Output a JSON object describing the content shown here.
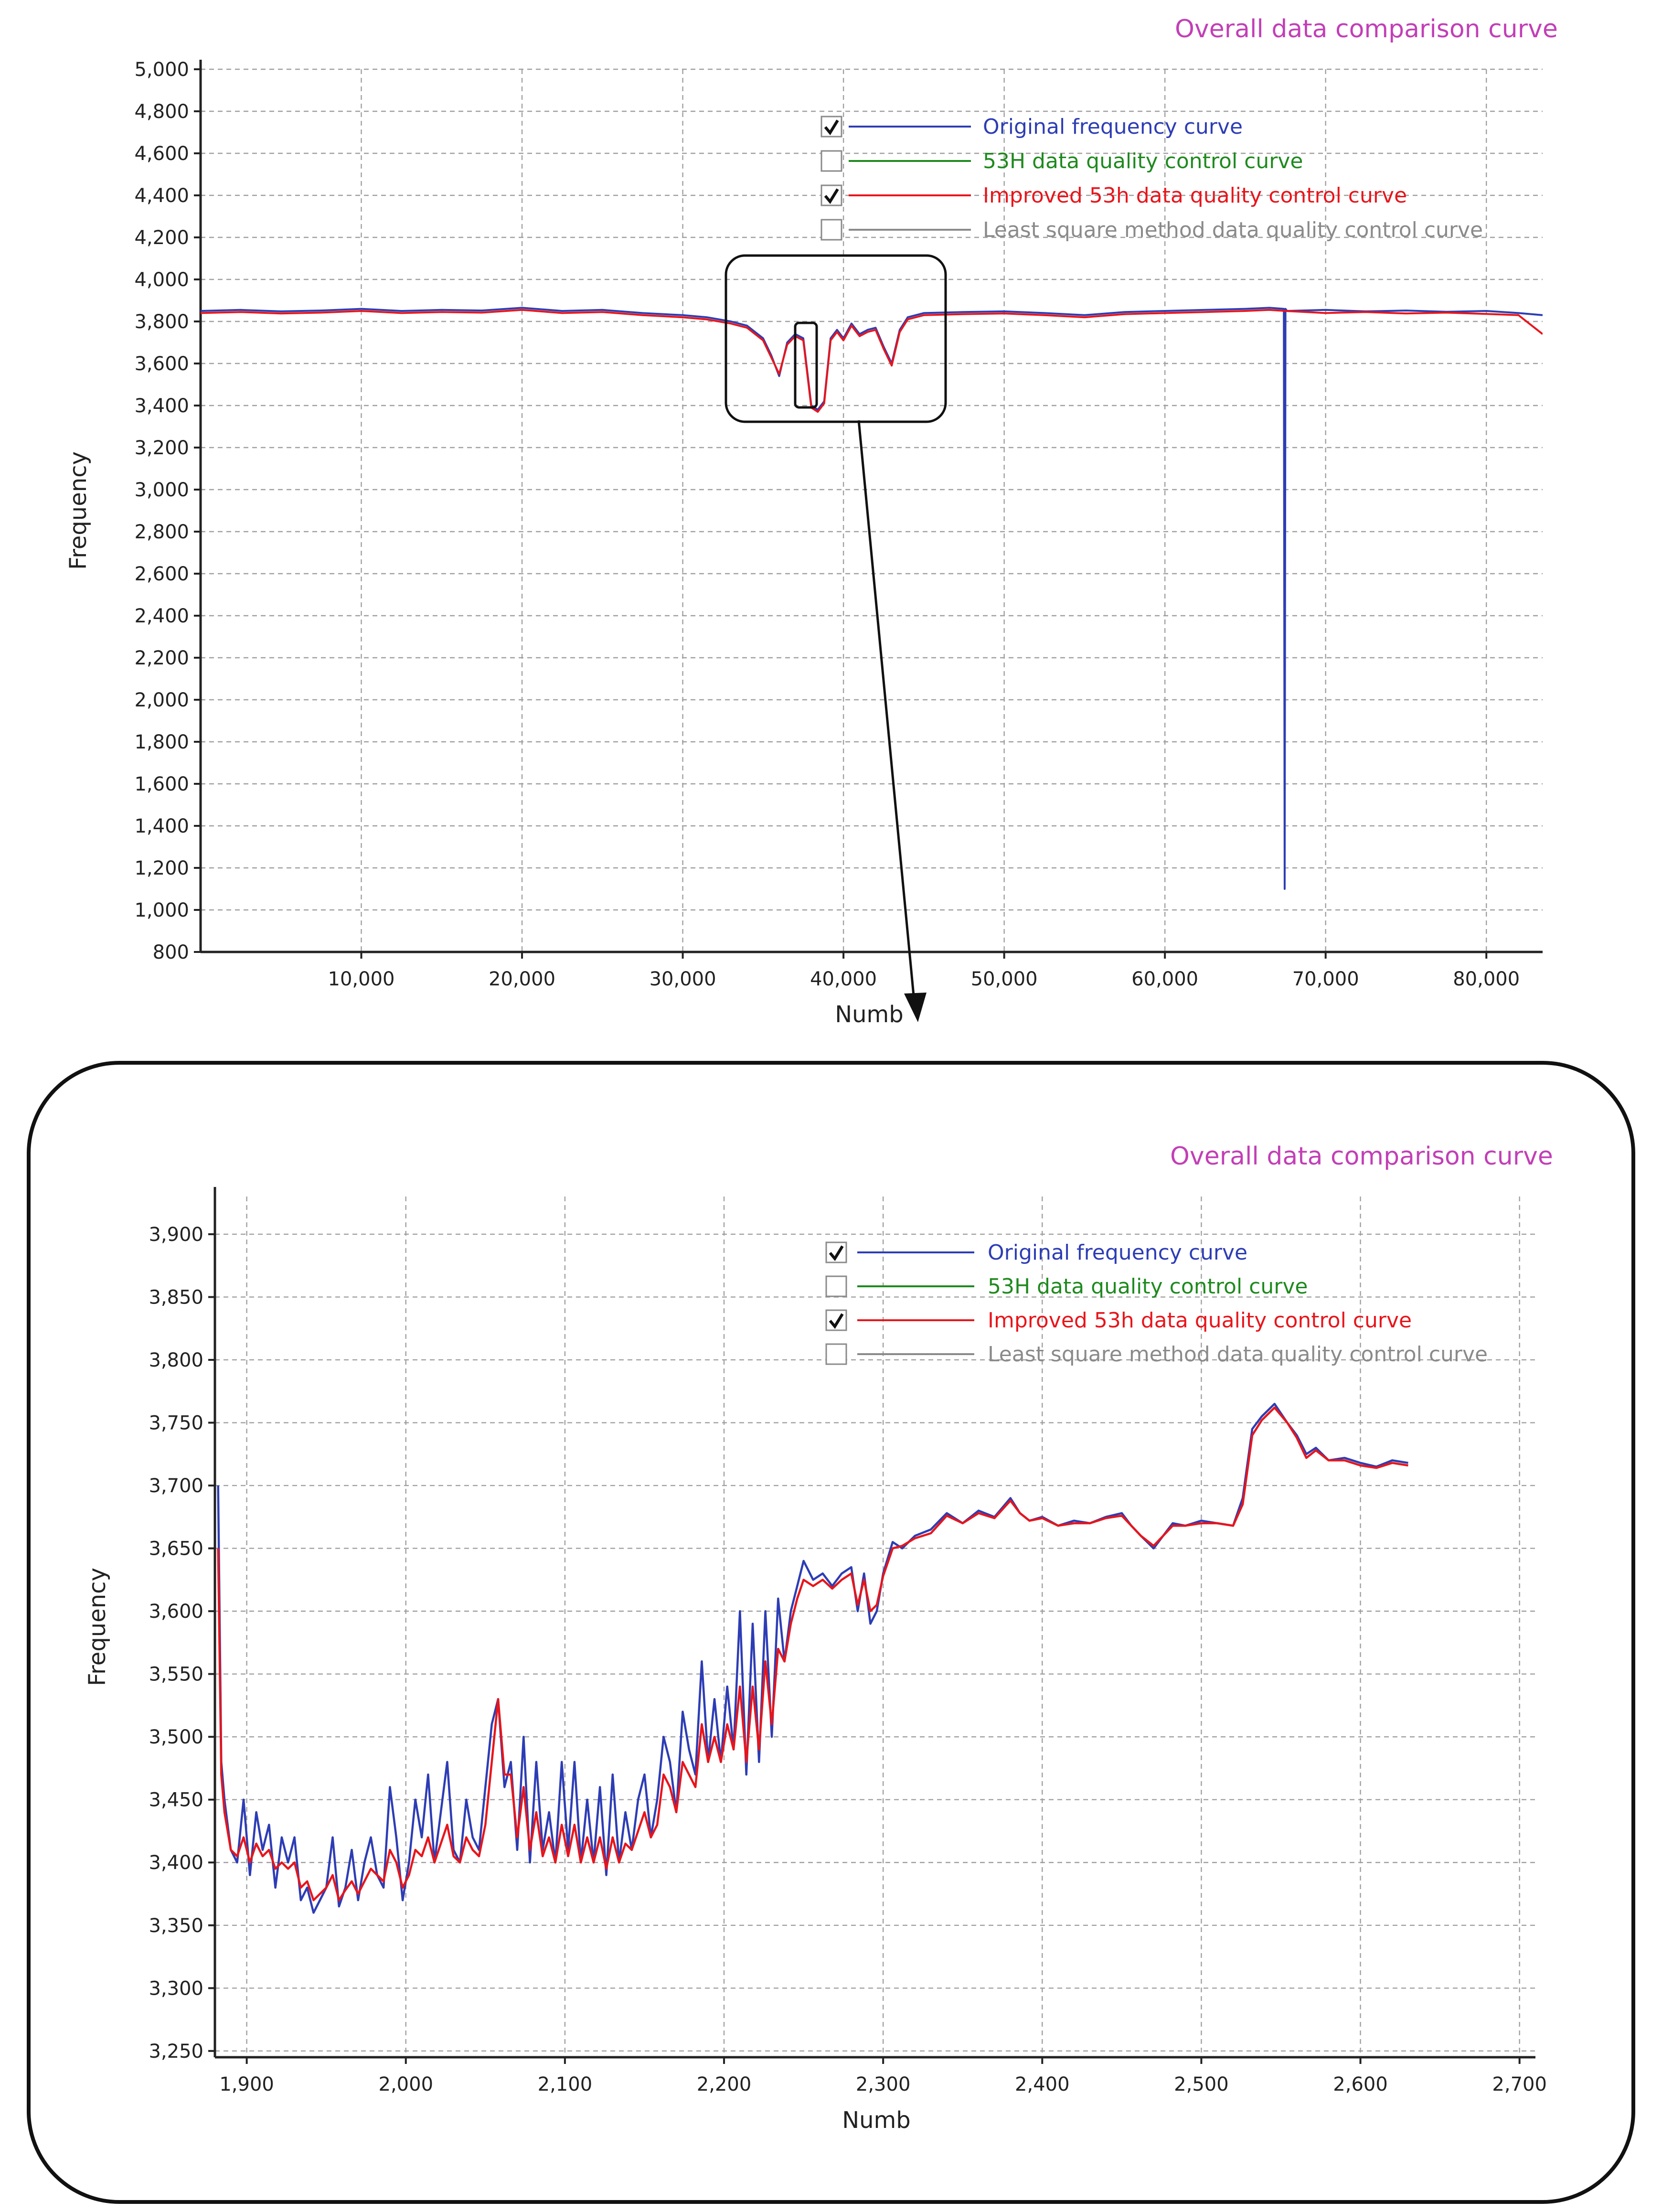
{
  "chart_data": [
    {
      "type": "line",
      "title": "Overall data comparison curve",
      "xlabel": "Numb",
      "ylabel": "Frequency",
      "xlim": [
        0,
        83500
      ],
      "ylim": [
        800,
        5000
      ],
      "xticks": [
        10000,
        20000,
        30000,
        40000,
        50000,
        60000,
        70000,
        80000
      ],
      "xtick_labels": [
        "10,000",
        "20,000",
        "30,000",
        "40,000",
        "50,000",
        "60,000",
        "70,000",
        "80,000"
      ],
      "yticks": [
        800,
        1000,
        1200,
        1400,
        1600,
        1800,
        2000,
        2200,
        2400,
        2600,
        2800,
        3000,
        3200,
        3400,
        3600,
        3800,
        4000,
        4200,
        4400,
        4600,
        4800,
        5000
      ],
      "ytick_labels": [
        "800",
        "1,000",
        "1,200",
        "1,400",
        "1,600",
        "1,800",
        "2,000",
        "2,200",
        "2,400",
        "2,600",
        "2,800",
        "3,000",
        "3,200",
        "3,400",
        "3,600",
        "3,800",
        "4,000",
        "4,200",
        "4,400",
        "4,600",
        "4,800",
        "5,000"
      ],
      "grid": true,
      "legend": [
        {
          "label": "Original frequency curve",
          "color": "#2d3db5",
          "checked": true
        },
        {
          "label": "53H data quality control curve",
          "color": "#1e8a1e",
          "checked": false
        },
        {
          "label": "Improved 53h data quality control curve",
          "color": "#e8151b",
          "checked": true
        },
        {
          "label": "Least square method data quality control curve",
          "color": "#8a8a8a",
          "checked": false
        }
      ],
      "series": [
        {
          "name": "Original frequency curve",
          "color": "#2d3db5",
          "x": [
            0,
            2500,
            5000,
            7500,
            10000,
            12500,
            15000,
            17500,
            20000,
            22500,
            25000,
            27500,
            30000,
            31500,
            33000,
            34000,
            35000,
            35500,
            36000,
            36500,
            37000,
            37500,
            38000,
            38400,
            38800,
            39200,
            39600,
            40000,
            40500,
            41000,
            41500,
            42000,
            42500,
            43000,
            43500,
            44000,
            45000,
            47500,
            50000,
            52500,
            55000,
            57500,
            60000,
            62500,
            65000,
            66500,
            67400,
            67450,
            67500,
            67600,
            70000,
            72500,
            75000,
            77500,
            80000,
            82000,
            83500
          ],
          "y": [
            3850,
            3855,
            3848,
            3852,
            3860,
            3850,
            3855,
            3852,
            3865,
            3850,
            3855,
            3840,
            3830,
            3820,
            3800,
            3780,
            3720,
            3640,
            3540,
            3700,
            3740,
            3720,
            3400,
            3380,
            3420,
            3720,
            3760,
            3720,
            3790,
            3740,
            3760,
            3770,
            3680,
            3600,
            3760,
            3820,
            3840,
            3845,
            3848,
            3840,
            3830,
            3845,
            3850,
            3855,
            3860,
            3865,
            3860,
            1100,
            3860,
            3850,
            3855,
            3848,
            3852,
            3846,
            3850,
            3840,
            3830
          ]
        },
        {
          "name": "Improved 53h data quality control curve",
          "color": "#e8151b",
          "x": [
            0,
            2500,
            5000,
            7500,
            10000,
            12500,
            15000,
            17500,
            20000,
            22500,
            25000,
            27500,
            30000,
            31500,
            33000,
            34000,
            35000,
            35500,
            36000,
            36500,
            37000,
            37500,
            38000,
            38400,
            38800,
            39200,
            39600,
            40000,
            40500,
            41000,
            41500,
            42000,
            42500,
            43000,
            43500,
            44000,
            45000,
            47500,
            50000,
            52500,
            55000,
            57500,
            60000,
            62500,
            65000,
            66500,
            67500,
            70000,
            72500,
            75000,
            77500,
            80000,
            82000,
            83500
          ],
          "y": [
            3840,
            3845,
            3838,
            3842,
            3850,
            3840,
            3845,
            3842,
            3855,
            3840,
            3845,
            3830,
            3820,
            3810,
            3790,
            3770,
            3710,
            3630,
            3550,
            3690,
            3730,
            3710,
            3390,
            3370,
            3410,
            3710,
            3750,
            3710,
            3780,
            3730,
            3750,
            3760,
            3670,
            3590,
            3750,
            3810,
            3830,
            3835,
            3838,
            3830,
            3820,
            3835,
            3840,
            3845,
            3850,
            3855,
            3850,
            3840,
            3845,
            3838,
            3842,
            3836,
            3830,
            3740
          ]
        }
      ]
    },
    {
      "type": "line",
      "title": "Overall data comparison curve",
      "xlabel": "Numb",
      "ylabel": "Frequency",
      "xlim": [
        1880,
        2710
      ],
      "ylim": [
        3245,
        3930
      ],
      "xticks": [
        1900,
        2000,
        2100,
        2200,
        2300,
        2400,
        2500,
        2600,
        2700
      ],
      "xtick_labels": [
        "1,900",
        "2,000",
        "2,100",
        "2,200",
        "2,300",
        "2,400",
        "2,500",
        "2,600",
        "2,700"
      ],
      "yticks": [
        3250,
        3300,
        3350,
        3400,
        3450,
        3500,
        3550,
        3600,
        3650,
        3700,
        3750,
        3800,
        3850,
        3900
      ],
      "ytick_labels": [
        "3,250",
        "3,300",
        "3,350",
        "3,400",
        "3,450",
        "3,500",
        "3,550",
        "3,600",
        "3,650",
        "3,700",
        "3,750",
        "3,800",
        "3,850",
        "3,900"
      ],
      "grid": true,
      "legend": [
        {
          "label": "Original frequency curve",
          "color": "#2d3db5",
          "checked": true
        },
        {
          "label": "53H data quality control curve",
          "color": "#1e8a1e",
          "checked": false
        },
        {
          "label": "Improved 53h data quality control curve",
          "color": "#e8151b",
          "checked": true
        },
        {
          "label": "Least square method data quality control curve",
          "color": "#8a8a8a",
          "checked": false
        }
      ],
      "series": [
        {
          "name": "Original frequency curve",
          "color": "#2d3db5",
          "x": [
            1882,
            1884,
            1886,
            1890,
            1894,
            1898,
            1902,
            1906,
            1910,
            1914,
            1918,
            1922,
            1926,
            1930,
            1934,
            1938,
            1942,
            1946,
            1950,
            1954,
            1958,
            1962,
            1966,
            1970,
            1974,
            1978,
            1982,
            1986,
            1990,
            1994,
            1998,
            2002,
            2006,
            2010,
            2014,
            2018,
            2022,
            2026,
            2030,
            2034,
            2038,
            2042,
            2046,
            2050,
            2054,
            2058,
            2062,
            2066,
            2070,
            2074,
            2078,
            2082,
            2086,
            2090,
            2094,
            2098,
            2102,
            2106,
            2110,
            2114,
            2118,
            2122,
            2126,
            2130,
            2134,
            2138,
            2142,
            2146,
            2150,
            2154,
            2158,
            2162,
            2166,
            2170,
            2174,
            2178,
            2182,
            2186,
            2190,
            2194,
            2198,
            2202,
            2206,
            2210,
            2214,
            2218,
            2222,
            2226,
            2230,
            2234,
            2238,
            2242,
            2246,
            2250,
            2256,
            2262,
            2268,
            2274,
            2280,
            2284,
            2288,
            2292,
            2296,
            2300,
            2306,
            2312,
            2320,
            2330,
            2340,
            2350,
            2360,
            2370,
            2380,
            2386,
            2392,
            2400,
            2410,
            2420,
            2430,
            2440,
            2450,
            2456,
            2462,
            2470,
            2476,
            2482,
            2490,
            2500,
            2510,
            2520,
            2526,
            2532,
            2538,
            2546,
            2554,
            2560,
            2566,
            2572,
            2580,
            2590,
            2600,
            2610,
            2620,
            2630
          ],
          "y": [
            3700,
            3480,
            3450,
            3410,
            3400,
            3450,
            3390,
            3440,
            3410,
            3430,
            3380,
            3420,
            3400,
            3420,
            3370,
            3380,
            3360,
            3370,
            3380,
            3420,
            3365,
            3380,
            3410,
            3370,
            3400,
            3420,
            3390,
            3380,
            3460,
            3420,
            3370,
            3400,
            3450,
            3420,
            3470,
            3400,
            3440,
            3480,
            3410,
            3400,
            3450,
            3420,
            3410,
            3460,
            3510,
            3530,
            3460,
            3480,
            3410,
            3500,
            3400,
            3480,
            3410,
            3440,
            3400,
            3480,
            3410,
            3480,
            3400,
            3450,
            3400,
            3460,
            3390,
            3470,
            3400,
            3440,
            3410,
            3450,
            3470,
            3420,
            3450,
            3500,
            3480,
            3440,
            3520,
            3490,
            3470,
            3560,
            3480,
            3530,
            3480,
            3540,
            3490,
            3600,
            3470,
            3590,
            3480,
            3600,
            3500,
            3610,
            3560,
            3600,
            3620,
            3640,
            3625,
            3630,
            3620,
            3630,
            3635,
            3600,
            3630,
            3590,
            3600,
            3630,
            3655,
            3650,
            3660,
            3665,
            3678,
            3670,
            3680,
            3675,
            3690,
            3678,
            3672,
            3675,
            3668,
            3672,
            3670,
            3675,
            3678,
            3668,
            3660,
            3650,
            3660,
            3670,
            3668,
            3672,
            3670,
            3668,
            3690,
            3745,
            3755,
            3765,
            3750,
            3740,
            3725,
            3730,
            3720,
            3722,
            3718,
            3715,
            3720,
            3718
          ]
        },
        {
          "name": "Improved 53h data quality control curve",
          "color": "#e8151b",
          "x": [
            1882,
            1884,
            1886,
            1890,
            1894,
            1898,
            1902,
            1906,
            1910,
            1914,
            1918,
            1922,
            1926,
            1930,
            1934,
            1938,
            1942,
            1946,
            1950,
            1954,
            1958,
            1962,
            1966,
            1970,
            1974,
            1978,
            1982,
            1986,
            1990,
            1994,
            1998,
            2002,
            2006,
            2010,
            2014,
            2018,
            2022,
            2026,
            2030,
            2034,
            2038,
            2042,
            2046,
            2050,
            2054,
            2058,
            2062,
            2066,
            2070,
            2074,
            2078,
            2082,
            2086,
            2090,
            2094,
            2098,
            2102,
            2106,
            2110,
            2114,
            2118,
            2122,
            2126,
            2130,
            2134,
            2138,
            2142,
            2146,
            2150,
            2154,
            2158,
            2162,
            2166,
            2170,
            2174,
            2178,
            2182,
            2186,
            2190,
            2194,
            2198,
            2202,
            2206,
            2210,
            2214,
            2218,
            2222,
            2226,
            2230,
            2234,
            2238,
            2242,
            2246,
            2250,
            2256,
            2262,
            2268,
            2274,
            2280,
            2284,
            2288,
            2292,
            2296,
            2300,
            2306,
            2312,
            2320,
            2330,
            2340,
            2350,
            2360,
            2370,
            2380,
            2386,
            2392,
            2400,
            2410,
            2420,
            2430,
            2440,
            2450,
            2456,
            2462,
            2470,
            2476,
            2482,
            2490,
            2500,
            2510,
            2520,
            2526,
            2532,
            2538,
            2546,
            2554,
            2560,
            2566,
            2572,
            2580,
            2590,
            2600,
            2610,
            2620,
            2630
          ],
          "y": [
            3650,
            3470,
            3440,
            3410,
            3405,
            3420,
            3400,
            3415,
            3405,
            3410,
            3395,
            3400,
            3395,
            3400,
            3380,
            3385,
            3370,
            3375,
            3380,
            3390,
            3370,
            3378,
            3385,
            3375,
            3385,
            3395,
            3390,
            3385,
            3410,
            3400,
            3380,
            3390,
            3410,
            3405,
            3420,
            3400,
            3415,
            3430,
            3405,
            3400,
            3420,
            3410,
            3405,
            3430,
            3480,
            3530,
            3470,
            3470,
            3420,
            3460,
            3410,
            3440,
            3405,
            3420,
            3400,
            3430,
            3405,
            3430,
            3400,
            3420,
            3400,
            3420,
            3395,
            3420,
            3400,
            3415,
            3410,
            3425,
            3440,
            3420,
            3430,
            3470,
            3460,
            3440,
            3480,
            3470,
            3460,
            3510,
            3480,
            3500,
            3480,
            3510,
            3490,
            3540,
            3480,
            3540,
            3490,
            3560,
            3510,
            3570,
            3560,
            3590,
            3610,
            3625,
            3620,
            3625,
            3618,
            3625,
            3630,
            3605,
            3625,
            3600,
            3605,
            3628,
            3650,
            3652,
            3658,
            3662,
            3676,
            3670,
            3678,
            3674,
            3688,
            3678,
            3672,
            3674,
            3668,
            3670,
            3670,
            3674,
            3676,
            3668,
            3660,
            3652,
            3660,
            3668,
            3668,
            3670,
            3670,
            3668,
            3685,
            3740,
            3752,
            3762,
            3750,
            3738,
            3722,
            3728,
            3720,
            3720,
            3716,
            3714,
            3718,
            3716
          ]
        }
      ]
    }
  ]
}
